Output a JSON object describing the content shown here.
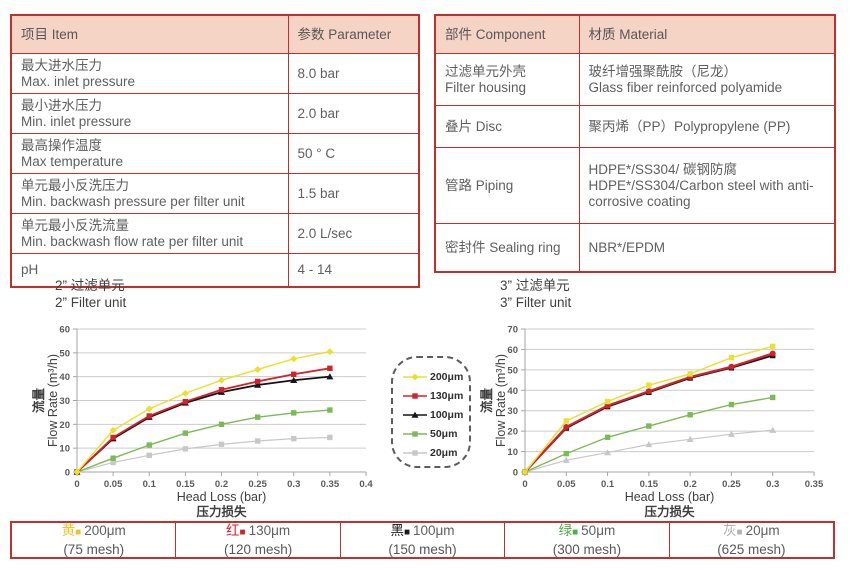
{
  "colors": {
    "border_red": "#c0302c",
    "header_bg": "#f5d3c5",
    "series_yellow": "#e8e133",
    "series_red": "#d2232a",
    "series_black": "#151515",
    "series_green": "#7cba58",
    "series_gray": "#c7c7c7"
  },
  "spec_table": {
    "headers": [
      "项目 Item",
      "参数 Parameter"
    ],
    "rows": [
      {
        "item": [
          "最大进水压力",
          "Max. inlet pressure"
        ],
        "value": "8.0 bar"
      },
      {
        "item": [
          "最小进水压力",
          "Min. inlet pressure"
        ],
        "value": "2.0 bar"
      },
      {
        "item": [
          "最高操作温度",
          "Max temperature"
        ],
        "value": "50 ° C"
      },
      {
        "item": [
          "单元最小反洗压力",
          "Min. backwash pressure per filter unit"
        ],
        "value": "1.5 bar"
      },
      {
        "item": [
          "单元最小反洗流量",
          "Min. backwash flow rate per filter unit"
        ],
        "value": "2.0 L/sec"
      },
      {
        "item": [
          "pH"
        ],
        "value": "4 - 14"
      }
    ]
  },
  "material_table": {
    "headers": [
      "部件 Component",
      "材质 Material"
    ],
    "rows": [
      {
        "component": [
          "过滤单元外壳",
          "Filter housing"
        ],
        "material": [
          "玻纤增强聚酰胺（尼龙）",
          "Glass fiber reinforced polyamide"
        ]
      },
      {
        "component": [
          "叠片 Disc"
        ],
        "material": [
          "聚丙烯（PP）Polypropylene (PP)"
        ]
      },
      {
        "component": [
          "管路 Piping"
        ],
        "material": [
          "HDPE*/SS304/ 碳钢防腐",
          "HDPE*/SS304/Carbon steel with anti-corrosive coating"
        ]
      },
      {
        "component": [
          "密封件 Sealing ring"
        ],
        "material": [
          "NBR*/EPDM"
        ]
      }
    ]
  },
  "chart_data": [
    {
      "type": "line",
      "title": [
        "2” 过滤单元",
        "2” Filter unit"
      ],
      "ylabel": [
        "流量",
        "Flow Rate (m³/h)"
      ],
      "xlabel": [
        "Head Loss (bar)",
        "压力损失"
      ],
      "xlim": [
        0,
        0.4
      ],
      "ylim": [
        0,
        60
      ],
      "xticks": [
        0,
        0.05,
        0.1,
        0.15,
        0.2,
        0.25,
        0.3,
        0.35,
        0.4
      ],
      "yticks": [
        0,
        10,
        20,
        30,
        40,
        50,
        60
      ],
      "x": [
        0,
        0.05,
        0.1,
        0.15,
        0.2,
        0.25,
        0.3,
        0.35
      ],
      "grid": "horizontal",
      "series": [
        {
          "name": "200μm",
          "color": "#e8e133",
          "marker": "diamond",
          "width": 1.5,
          "values": [
            0,
            17.5,
            26.5,
            33,
            38.5,
            43,
            47.5,
            50.5
          ]
        },
        {
          "name": "130μm",
          "color": "#d2232a",
          "marker": "square",
          "width": 1.8,
          "values": [
            0,
            14.5,
            23.5,
            29.5,
            34.5,
            38,
            41,
            43.5
          ]
        },
        {
          "name": "100μm",
          "color": "#151515",
          "marker": "triangle",
          "width": 1.8,
          "values": [
            0,
            14,
            23,
            29,
            33.5,
            36.5,
            38.5,
            40
          ]
        },
        {
          "name": "50μm",
          "color": "#7cba58",
          "marker": "square",
          "width": 1.4,
          "values": [
            0,
            5.8,
            11.3,
            16.3,
            20,
            23,
            24.8,
            26
          ]
        },
        {
          "name": "20μm",
          "color": "#c7c7c7",
          "marker": "square",
          "width": 1.2,
          "values": [
            0,
            4,
            7,
            9.7,
            11.6,
            13,
            14,
            14.5
          ]
        }
      ]
    },
    {
      "type": "line",
      "title": [
        "3” 过滤单元",
        "3” Filter unit"
      ],
      "ylabel": [
        "流量",
        "Flow Rate (m³/h)"
      ],
      "xlabel": [
        "Head Loss (bar)",
        "压力损失"
      ],
      "xlim": [
        0,
        0.35
      ],
      "ylim": [
        0,
        70
      ],
      "xticks": [
        0,
        0.05,
        0.1,
        0.15,
        0.2,
        0.25,
        0.3,
        0.35
      ],
      "yticks": [
        0,
        10,
        20,
        30,
        40,
        50,
        60,
        70
      ],
      "x": [
        0,
        0.05,
        0.1,
        0.15,
        0.2,
        0.25,
        0.3
      ],
      "grid": "horizontal",
      "series": [
        {
          "name": "200μm",
          "color": "#e8e133",
          "marker": "square",
          "width": 1.5,
          "values": [
            0,
            25,
            34.5,
            42.5,
            48,
            56,
            61.5
          ]
        },
        {
          "name": "130μm",
          "color": "#d2232a",
          "marker": "circle",
          "width": 2.2,
          "values": [
            0,
            22,
            32.5,
            39.5,
            46.5,
            51.5,
            58
          ]
        },
        {
          "name": "100μm",
          "color": "#151515",
          "marker": "square",
          "width": 1.8,
          "values": [
            0,
            21.5,
            32,
            39,
            46,
            51,
            57
          ]
        },
        {
          "name": "50μm",
          "color": "#7cba58",
          "marker": "square",
          "width": 1.4,
          "values": [
            0,
            9,
            17,
            22.5,
            28,
            33,
            36.5
          ]
        },
        {
          "name": "20μm",
          "color": "#c7c7c7",
          "marker": "triangle",
          "width": 1.2,
          "values": [
            0,
            5.8,
            9.5,
            13.5,
            16,
            18.5,
            20.5
          ]
        }
      ]
    }
  ],
  "box_legend": {
    "items": [
      {
        "label": "200μm",
        "color": "#e8e133",
        "marker": "diamond"
      },
      {
        "label": "130μm",
        "color": "#d2232a",
        "marker": "square"
      },
      {
        "label": "100μm",
        "color": "#151515",
        "marker": "triangle"
      },
      {
        "label": "50μm",
        "color": "#7cba58",
        "marker": "square"
      },
      {
        "label": "20μm",
        "color": "#c7c7c7",
        "marker": "square"
      }
    ]
  },
  "bottom_legend": {
    "cells": [
      {
        "color_zh": "黄",
        "color": "#eac42e",
        "size": "200μm",
        "mesh": "(75 mesh)"
      },
      {
        "color_zh": "红",
        "color": "#d2232a",
        "size": "130μm",
        "mesh": "(120 mesh)"
      },
      {
        "color_zh": "黑",
        "color": "#1a1a1a",
        "size": "100μm",
        "mesh": "(150 mesh)"
      },
      {
        "color_zh": "绿",
        "color": "#4fae4a",
        "size": "50μm",
        "mesh": "(300 mesh)"
      },
      {
        "color_zh": "灰",
        "color": "#b3b3b3",
        "size": "20μm",
        "mesh": "(625 mesh)"
      }
    ]
  }
}
